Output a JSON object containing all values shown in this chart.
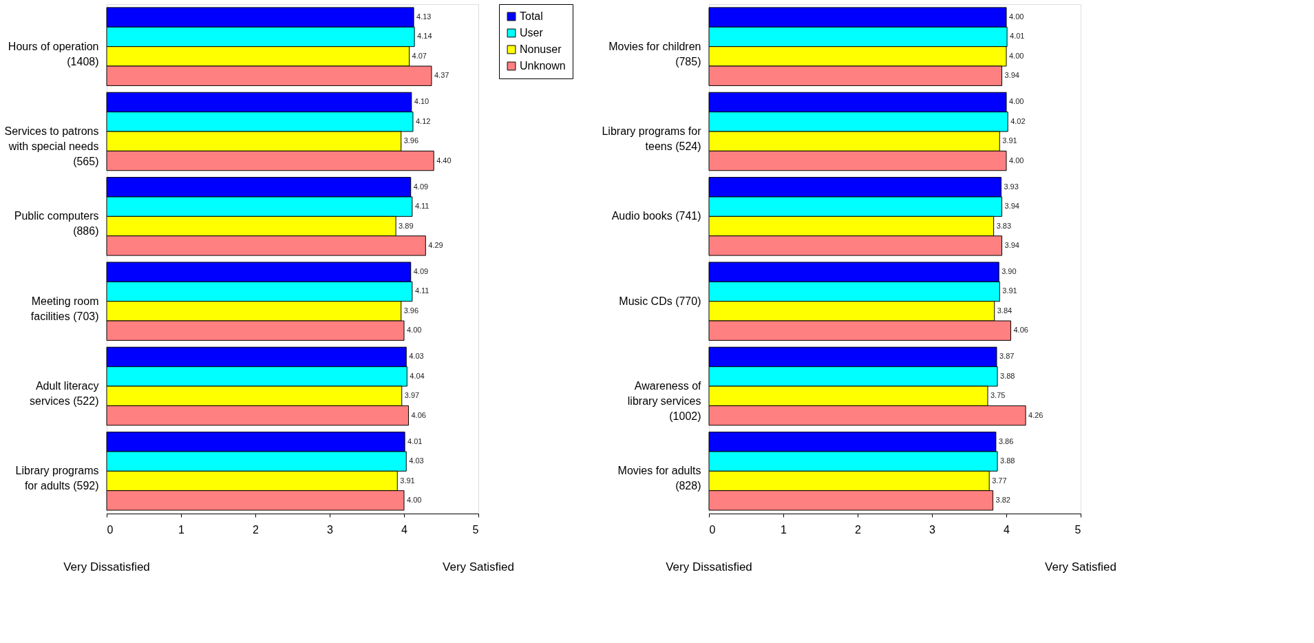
{
  "chart_data": [
    {
      "type": "bar",
      "orientation": "horizontal",
      "grid": false,
      "legend": "top right",
      "categories": [
        "Hours of operation\n(1408)",
        "Services to patrons\nwith special needs\n(565)",
        "Public computers\n(886)",
        "Meeting room\nfacilities (703)",
        "Adult literacy\nservices (522)",
        "Library programs\nfor adults (592)"
      ],
      "series": [
        {
          "name": "Total",
          "color": "#0000ff",
          "values": [
            4.13,
            4.1,
            4.09,
            4.09,
            4.03,
            4.01
          ],
          "value_labels": [
            "4.13",
            "4.10",
            "4.09",
            "4.09",
            "4.03",
            "4.01"
          ]
        },
        {
          "name": "User",
          "color": "#00ffff",
          "values": [
            4.14,
            4.12,
            4.11,
            4.11,
            4.04,
            4.03
          ],
          "value_labels": [
            "4.14",
            "4.12",
            "4.11",
            "4.11",
            "4.04",
            "4.03"
          ]
        },
        {
          "name": "Nonuser",
          "color": "#ffff00",
          "values": [
            4.07,
            3.96,
            3.89,
            3.96,
            3.97,
            3.91
          ],
          "value_labels": [
            "4.07",
            "3.96",
            "3.89",
            "3.96",
            "3.97",
            "3.91"
          ]
        },
        {
          "name": "Unknown",
          "color": "#ff8080",
          "values": [
            4.37,
            4.4,
            4.29,
            4.0,
            4.06,
            4.0
          ],
          "value_labels": [
            "4.37",
            "4.40",
            "4.29",
            "4.00",
            "4.06",
            "4.00"
          ]
        }
      ],
      "xlim": [
        0,
        5
      ],
      "xticks": [
        0,
        1,
        2,
        3,
        4,
        5
      ],
      "annotations": [
        "Very Dissatisfied",
        "Very Satisfied"
      ]
    },
    {
      "type": "bar",
      "orientation": "horizontal",
      "grid": false,
      "legend": false,
      "categories": [
        "Movies for children\n(785)",
        "Library programs for\nteens (524)",
        "Audio books (741)",
        "Music CDs (770)",
        "Awareness of\nlibrary services\n(1002)",
        "Movies for adults\n(828)"
      ],
      "series": [
        {
          "color": "#0000ff",
          "values": [
            4.0,
            4.0,
            3.93,
            3.9,
            3.87,
            3.86
          ],
          "value_labels": [
            "4.00",
            "4.00",
            "3.93",
            "3.90",
            "3.87",
            "3.86"
          ]
        },
        {
          "color": "#00ffff",
          "values": [
            4.01,
            4.02,
            3.94,
            3.91,
            3.88,
            3.88
          ],
          "value_labels": [
            "4.01",
            "4.02",
            "3.94",
            "3.91",
            "3.88",
            "3.88"
          ]
        },
        {
          "color": "#ffff00",
          "values": [
            4.0,
            3.91,
            3.83,
            3.84,
            3.75,
            3.77
          ],
          "value_labels": [
            "4.00",
            "3.91",
            "3.83",
            "3.84",
            "3.75",
            "3.77"
          ]
        },
        {
          "color": "#ff8080",
          "values": [
            3.94,
            4.0,
            3.94,
            4.06,
            4.26,
            3.82
          ],
          "value_labels": [
            "3.94",
            "4.00",
            "3.94",
            "4.06",
            "4.26",
            "3.82"
          ]
        }
      ],
      "xlim": [
        0,
        5
      ],
      "xticks": [
        0,
        1,
        2,
        3,
        4,
        5
      ],
      "annotations": [
        "Very Dissatisfied",
        "Very Satisfied"
      ]
    }
  ]
}
